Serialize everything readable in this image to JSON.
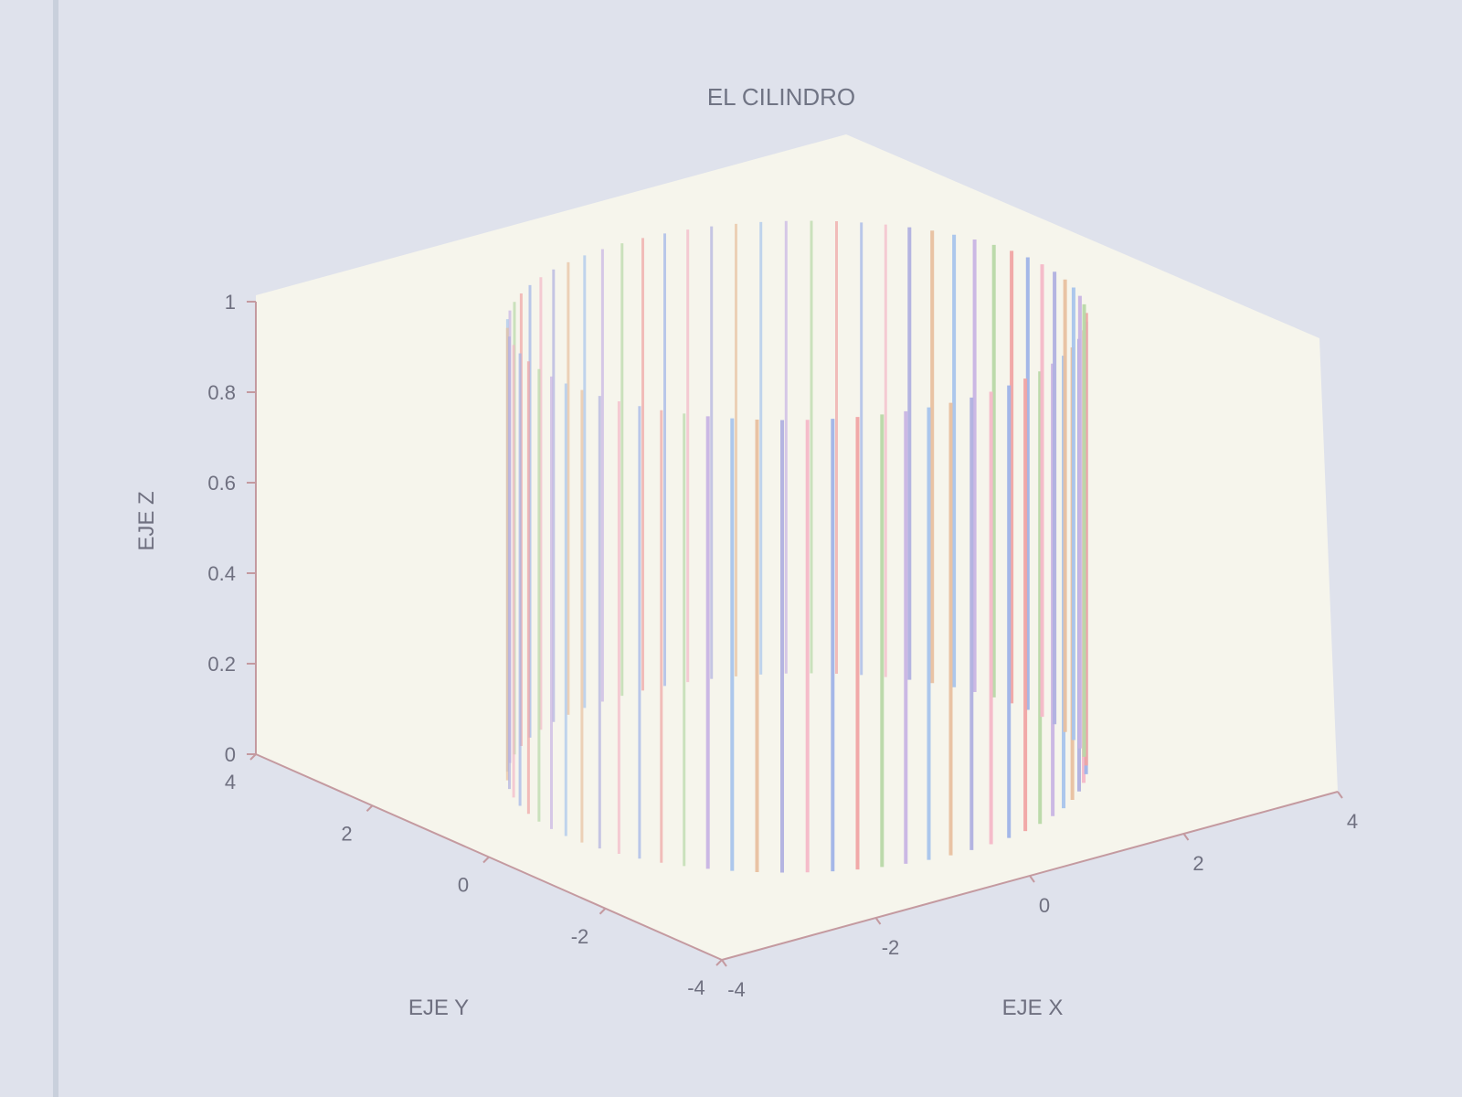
{
  "figure": {
    "bg_color": "#dfe2ec",
    "frame_color": "#c9d0dc",
    "axes_bg_color": "#f6f5ec"
  },
  "chart_data": {
    "type": "3d-line",
    "title": "EL CILINDRO",
    "xlabel": "EJE X",
    "ylabel": "EJE Y",
    "zlabel": "EJE Z",
    "xlim": [
      -4,
      4
    ],
    "ylim": [
      -4,
      4
    ],
    "zlim": [
      0,
      1
    ],
    "xticks": [
      "-4",
      "-2",
      "0",
      "2",
      "4"
    ],
    "yticks": [
      "-4",
      "-2",
      "0",
      "2",
      "4"
    ],
    "zticks": [
      "0",
      "0.2",
      "0.4",
      "0.6",
      "0.8",
      "1"
    ],
    "cylinder": {
      "radius": 3,
      "height": 1,
      "line_count": 72
    },
    "line_colors": [
      "#9fb3e8",
      "#f0a4a4",
      "#b8d8a8",
      "#c8b4e4",
      "#a8c4ec",
      "#e8c0a0",
      "#b0b0e0",
      "#f4b8c8"
    ],
    "grid": false
  }
}
